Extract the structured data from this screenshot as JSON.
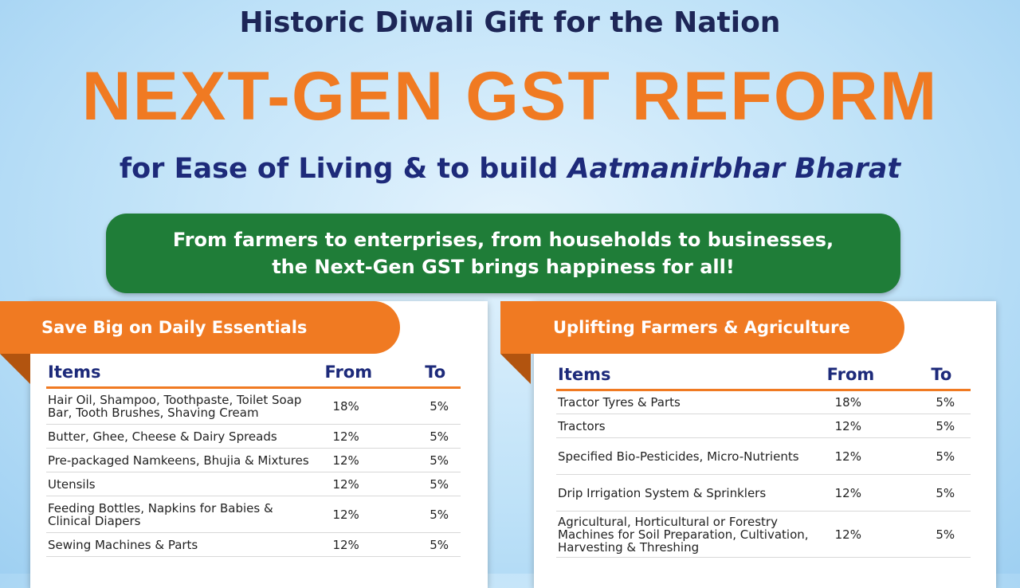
{
  "header": {
    "kicker": "Historic Diwali Gift for the Nation",
    "title": "NEXT-GEN GST REFORM",
    "subtitle_lead": "for Ease of Living & to build",
    "subtitle_emphasis": "Aatmanirbhar Bharat"
  },
  "banner": {
    "lines": [
      "From farmers to enterprises, from households to businesses,",
      "the Next-Gen GST brings happiness for all!"
    ]
  },
  "panels": [
    {
      "title": "Save Big on Daily Essentials",
      "columns": [
        "Items",
        "From",
        "To"
      ],
      "rows": [
        [
          "Hair Oil, Shampoo, Toothpaste, Toilet Soap Bar, Tooth Brushes, Shaving Cream",
          "18%",
          "5%"
        ],
        [
          "Butter, Ghee, Cheese & Dairy Spreads",
          "12%",
          "5%"
        ],
        [
          "Pre-packaged Namkeens, Bhujia & Mixtures",
          "12%",
          "5%"
        ],
        [
          "Utensils",
          "12%",
          "5%"
        ],
        [
          "Feeding Bottles, Napkins for Babies & Clinical Diapers",
          "12%",
          "5%"
        ],
        [
          "Sewing Machines & Parts",
          "12%",
          "5%"
        ]
      ]
    },
    {
      "title": "Uplifting Farmers & Agriculture",
      "columns": [
        "Items",
        "From",
        "To"
      ],
      "rows": [
        [
          "Tractor Tyres & Parts",
          "18%",
          "5%"
        ],
        [
          "Tractors",
          "12%",
          "5%"
        ],
        [
          "Specified Bio-Pesticides, Micro-Nutrients",
          "12%",
          "5%"
        ],
        [
          "Drip Irrigation System & Sprinklers",
          "12%",
          "5%"
        ],
        [
          "Agricultural, Horticultural or Forestry Machines for Soil Preparation, Cultivation, Harvesting & Threshing",
          "12%",
          "5%"
        ]
      ]
    }
  ]
}
